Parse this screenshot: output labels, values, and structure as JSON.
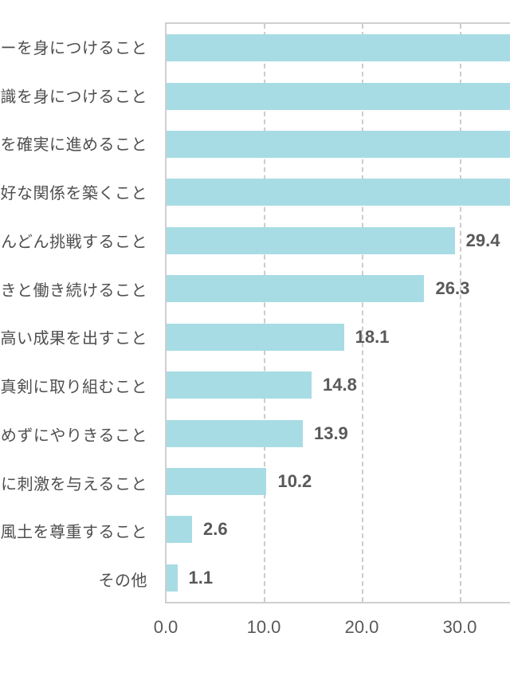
{
  "chart_data": {
    "type": "bar",
    "orientation": "horizontal",
    "title": "",
    "xlabel": "",
    "ylabel": "",
    "legend": false,
    "grid": "vertical-dashed",
    "note": "Top four bars extend beyond the right edge of the image; their values are not visible.",
    "items": [
      {
        "category": "ナーを身につけること",
        "value": null,
        "value_label": "",
        "cut_off_right": true
      },
      {
        "category": "知識を身につけること",
        "value": null,
        "value_label": "",
        "cut_off_right": true
      },
      {
        "category": "事を確実に進めること",
        "value": null,
        "value_label": "",
        "cut_off_right": true
      },
      {
        "category": "良好な関係を築くこと",
        "value": null,
        "value_label": "",
        "cut_off_right": true
      },
      {
        "category": "どんどん挑戦すること",
        "value": 29.4,
        "value_label": "29.4",
        "cut_off_right": false
      },
      {
        "category": "いきいきと働き続けること",
        "value": 26.3,
        "value_label": "26.3",
        "cut_off_right": false
      },
      {
        "category": "高い成果を出すこと",
        "value": 18.1,
        "value_label": "18.1",
        "cut_off_right": false
      },
      {
        "category": "に真剣に取り組むこと",
        "value": 14.8,
        "value_label": "14.8",
        "cut_off_right": false
      },
      {
        "category": "らめずにやりきること",
        "value": 13.9,
        "value_label": "13.9",
        "cut_off_right": false
      },
      {
        "category": "に刺激を与えること",
        "value": 10.2,
        "value_label": "10.2",
        "cut_off_right": false
      },
      {
        "category": "風土を尊重すること",
        "value": 2.6,
        "value_label": "2.6",
        "cut_off_right": false
      },
      {
        "category": "その他",
        "value": 1.1,
        "value_label": "1.1",
        "cut_off_right": false
      }
    ],
    "x_axis": {
      "tick_labels": [
        "0.0",
        "10.0",
        "20.0",
        "30.0"
      ],
      "tick_values": [
        0,
        10,
        20,
        30
      ],
      "visible_range": [
        0,
        35.2
      ]
    },
    "colors": {
      "bar": "#a8dce4",
      "grid": "#cccccc",
      "axis_border": "#cfcfcf",
      "value_text": "#595959",
      "category_text": "#4f4f4f",
      "tick_text": "#595959",
      "background": "#ffffff"
    }
  }
}
